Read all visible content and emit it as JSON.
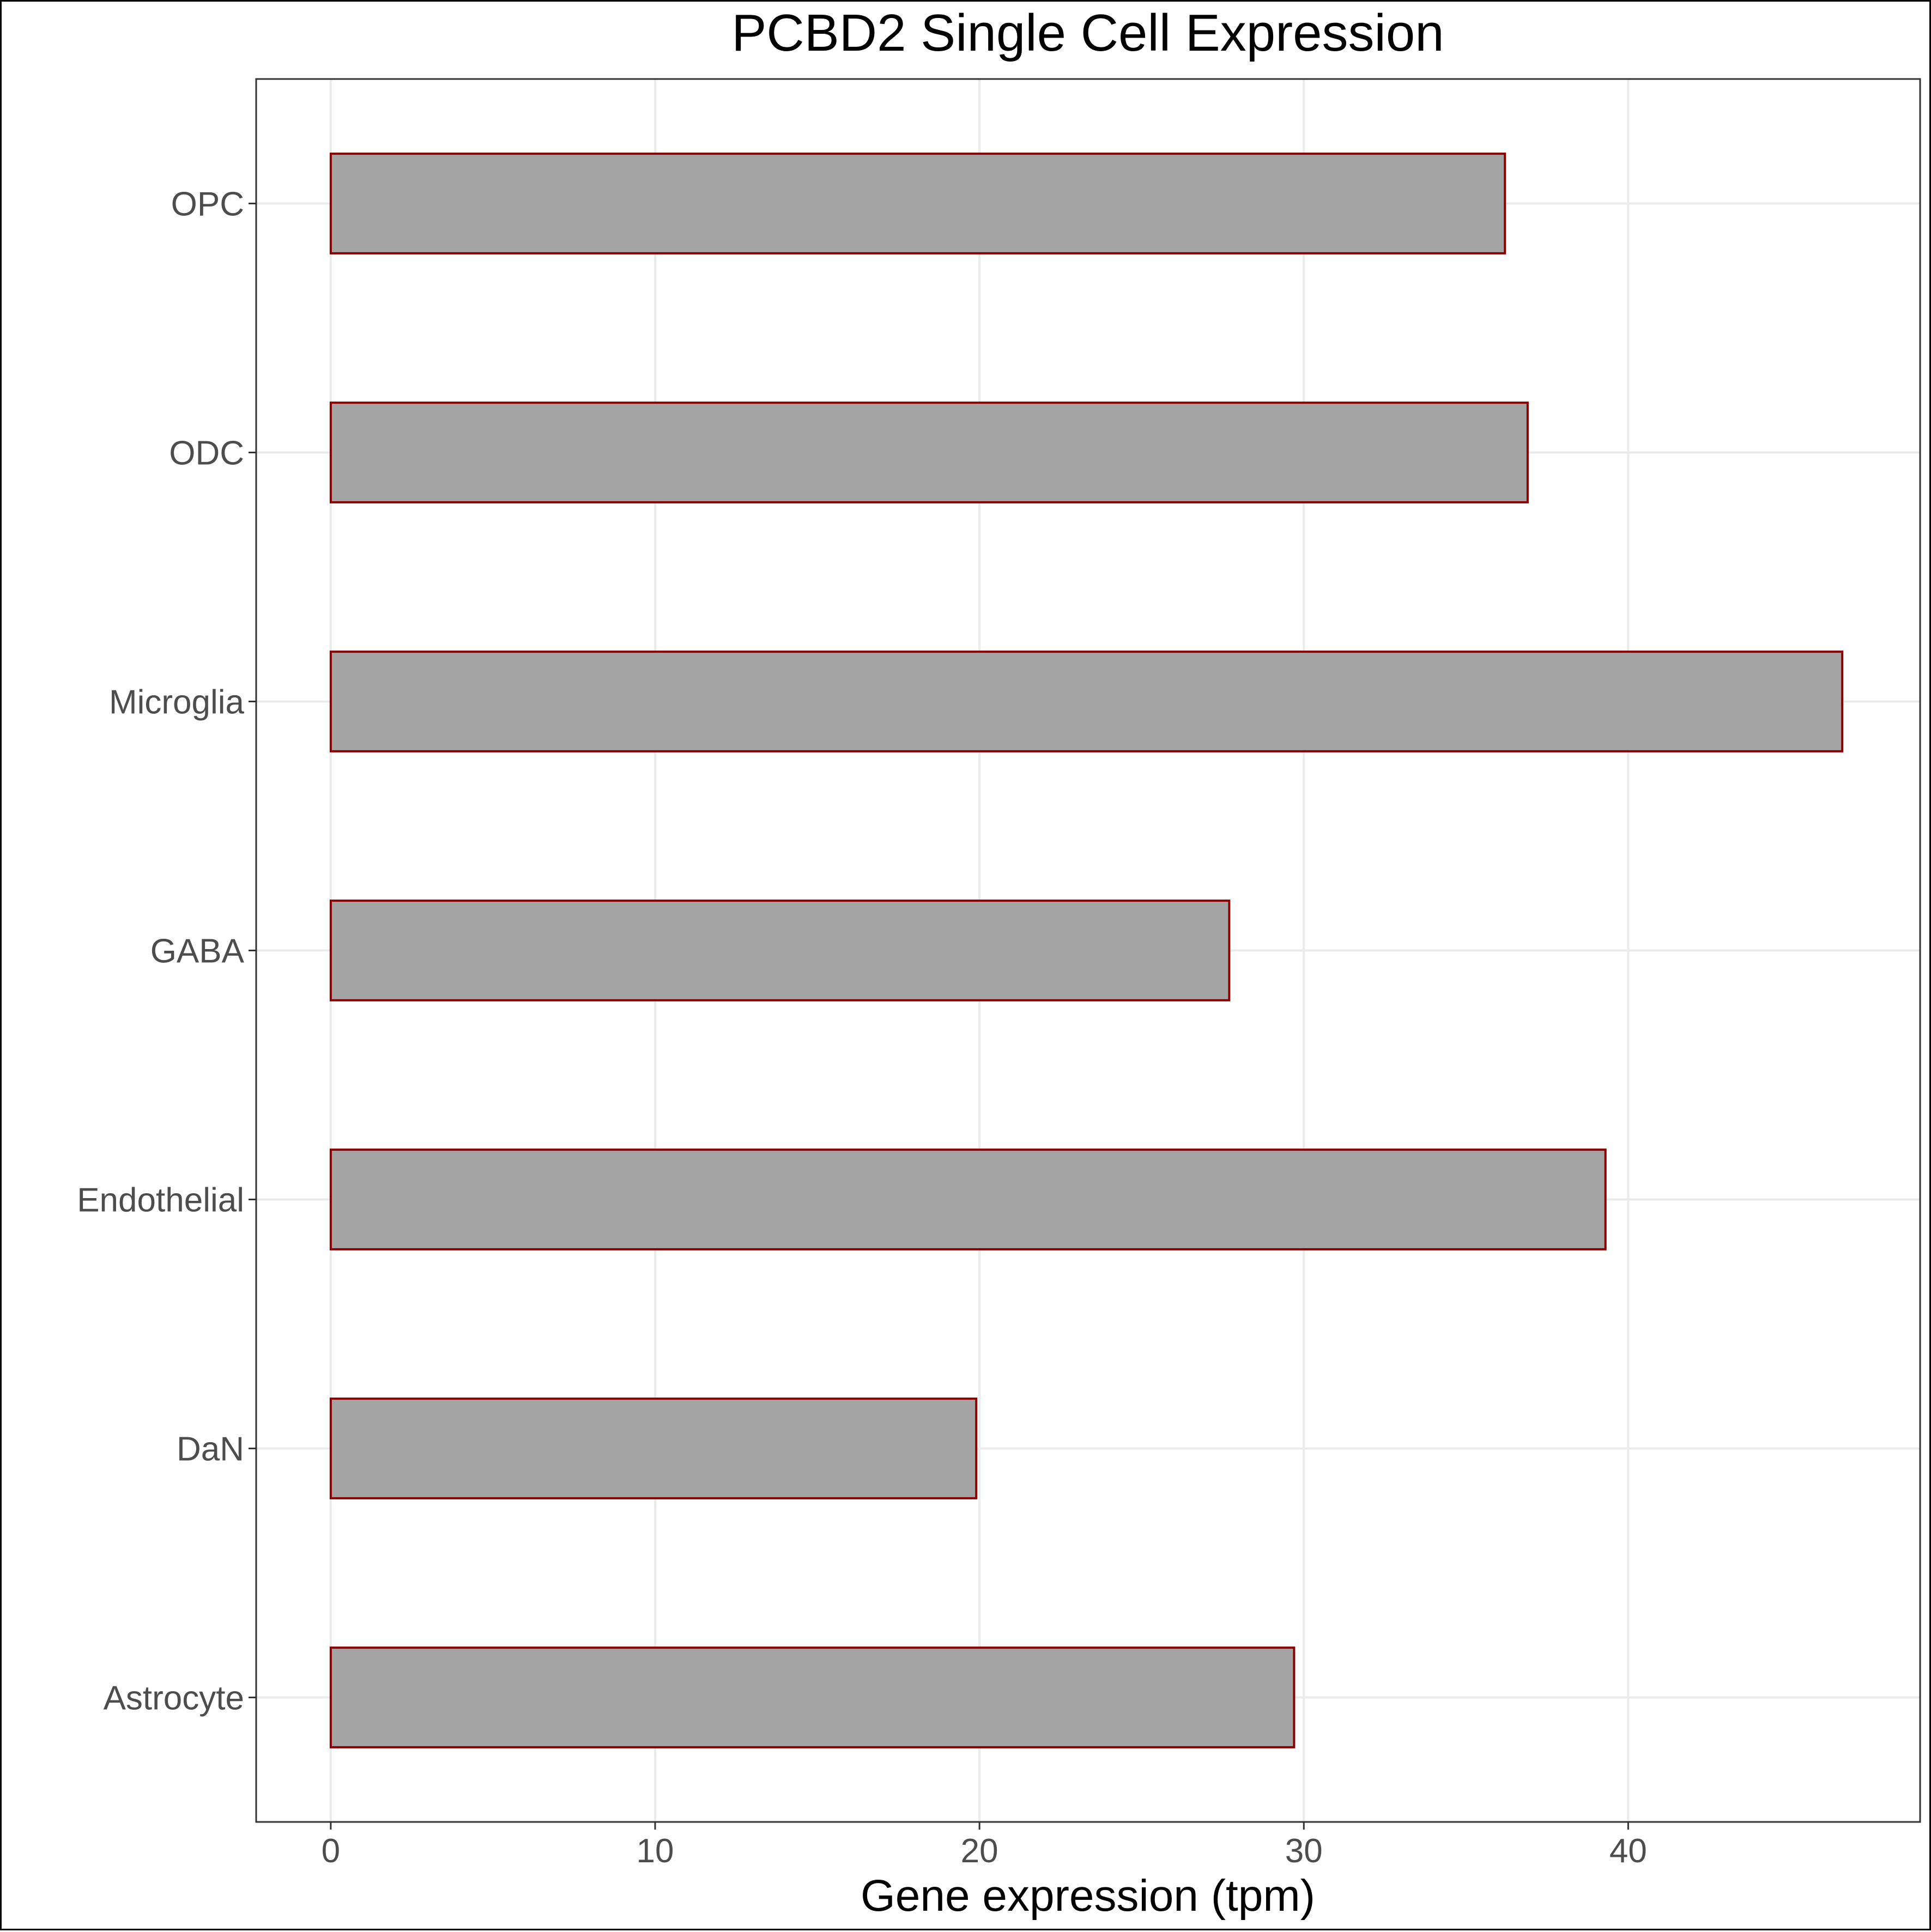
{
  "chart_data": {
    "type": "bar",
    "orientation": "horizontal",
    "title": "PCBD2 Single Cell Expression",
    "xlabel": "Gene expression (tpm)",
    "ylabel": "",
    "categories": [
      "OPC",
      "ODC",
      "Microglia",
      "GABA",
      "Endothelial",
      "DaN",
      "Astrocyte"
    ],
    "values": [
      36.2,
      36.9,
      46.6,
      27.7,
      39.3,
      19.9,
      29.7
    ],
    "xlim": [
      -2.3,
      49.0
    ],
    "xticks": [
      0,
      10,
      20,
      30,
      40
    ],
    "xtick_labels": [
      "0",
      "10",
      "20",
      "30",
      "40"
    ],
    "grid": true,
    "legend": "none",
    "colors": {
      "bar_fill": "#a4a4a4",
      "bar_stroke": "#8b0000",
      "grid": "#ebebeb",
      "panel_border": "#333333"
    }
  }
}
